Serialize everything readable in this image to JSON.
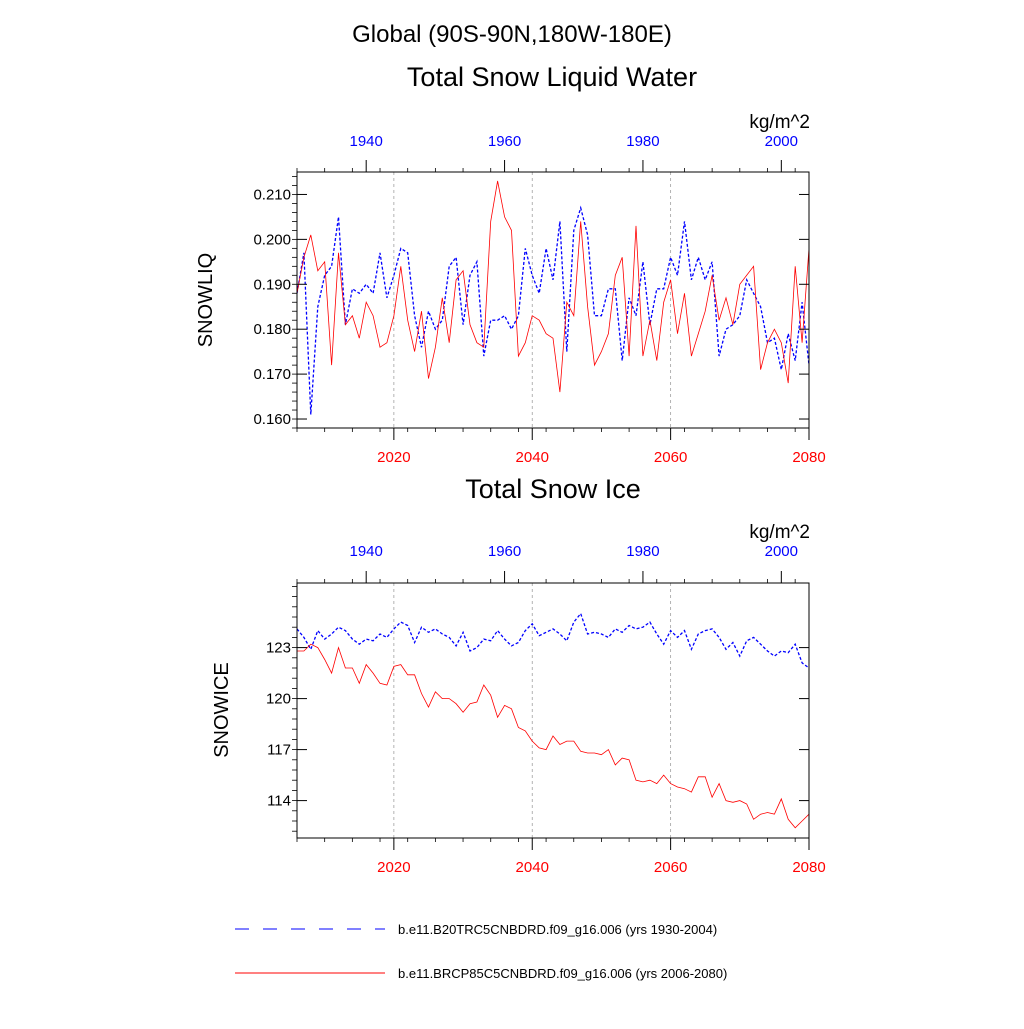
{
  "title": "Global (90S-90N,180W-180E)",
  "colors": {
    "hist": "#0000ff",
    "future": "#ff0000",
    "axis": "#000000",
    "grid": "#a0a0a0"
  },
  "legend": [
    {
      "label": "b.e11.B20TRC5CNBDRD.f09_g16.006 (yrs 1930-2004)",
      "color": "#0000ff",
      "dash": "dashed"
    },
    {
      "label": "b.e11.BRCP85C5CNBDRD.f09_g16.006 (yrs 2006-2080)",
      "color": "#ff0000",
      "dash": "solid"
    }
  ],
  "chart_data": [
    {
      "type": "line",
      "title": "Total Snow Liquid Water",
      "units": "kg/m^2",
      "ylabel": "SNOWLIQ",
      "ylim": [
        0.158,
        0.215
      ],
      "yticks": [
        0.16,
        0.17,
        0.18,
        0.19,
        0.2,
        0.21
      ],
      "ytick_labels": [
        "0.160",
        "0.170",
        "0.180",
        "0.190",
        "0.200",
        "0.210"
      ],
      "x_bottom": {
        "range": [
          2006,
          2080
        ],
        "ticks": [
          2020,
          2040,
          2060,
          2080
        ]
      },
      "x_top": {
        "range": [
          1930,
          2004
        ],
        "ticks": [
          1940,
          1960,
          1980,
          2000
        ]
      },
      "series": [
        {
          "name": "b.e11.B20TRC5CNBDRD.f09_g16.006 (yrs 1930-2004)",
          "axis": "top",
          "x_start": 1930,
          "values": [
            0.188,
            0.197,
            0.161,
            0.185,
            0.192,
            0.194,
            0.205,
            0.181,
            0.189,
            0.188,
            0.19,
            0.188,
            0.197,
            0.187,
            0.192,
            0.198,
            0.197,
            0.183,
            0.176,
            0.184,
            0.18,
            0.182,
            0.194,
            0.196,
            0.181,
            0.192,
            0.195,
            0.174,
            0.182,
            0.182,
            0.183,
            0.18,
            0.183,
            0.198,
            0.192,
            0.188,
            0.198,
            0.191,
            0.204,
            0.175,
            0.202,
            0.207,
            0.201,
            0.183,
            0.183,
            0.189,
            0.189,
            0.173,
            0.187,
            0.183,
            0.195,
            0.181,
            0.189,
            0.189,
            0.196,
            0.192,
            0.204,
            0.191,
            0.196,
            0.191,
            0.195,
            0.174,
            0.18,
            0.181,
            0.183,
            0.191,
            0.188,
            0.185,
            0.177,
            0.178,
            0.171,
            0.179,
            0.173,
            0.186,
            0.172
          ]
        },
        {
          "name": "b.e11.BRCP85C5CNBDRD.f09_g16.006 (yrs 2006-2080)",
          "axis": "bottom",
          "x_start": 2006,
          "values": [
            0.188,
            0.196,
            0.201,
            0.193,
            0.195,
            0.172,
            0.197,
            0.181,
            0.183,
            0.178,
            0.186,
            0.183,
            0.176,
            0.177,
            0.183,
            0.194,
            0.182,
            0.175,
            0.184,
            0.169,
            0.176,
            0.187,
            0.177,
            0.191,
            0.193,
            0.181,
            0.177,
            0.176,
            0.204,
            0.213,
            0.205,
            0.202,
            0.174,
            0.177,
            0.183,
            0.182,
            0.179,
            0.178,
            0.166,
            0.186,
            0.183,
            0.204,
            0.185,
            0.172,
            0.175,
            0.179,
            0.192,
            0.196,
            0.174,
            0.203,
            0.174,
            0.182,
            0.173,
            0.186,
            0.191,
            0.179,
            0.188,
            0.174,
            0.179,
            0.184,
            0.192,
            0.182,
            0.187,
            0.181,
            0.19,
            0.192,
            0.194,
            0.171,
            0.177,
            0.18,
            0.177,
            0.168,
            0.194,
            0.177,
            0.198
          ]
        }
      ]
    },
    {
      "type": "line",
      "title": "Total Snow Ice",
      "units": "kg/m^2",
      "ylabel": "SNOWICE",
      "ylim": [
        111.8,
        126.8
      ],
      "yticks": [
        114,
        117,
        120,
        123
      ],
      "ytick_labels": [
        "114",
        "117",
        "120",
        "123"
      ],
      "x_bottom": {
        "range": [
          2006,
          2080
        ],
        "ticks": [
          2020,
          2040,
          2060,
          2080
        ]
      },
      "x_top": {
        "range": [
          1930,
          2004
        ],
        "ticks": [
          1940,
          1960,
          1980,
          2000
        ]
      },
      "series": [
        {
          "name": "b.e11.B20TRC5CNBDRD.f09_g16.006 (yrs 1930-2004)",
          "axis": "top",
          "x_start": 1930,
          "values": [
            124.1,
            123.6,
            122.9,
            124.0,
            123.5,
            123.8,
            124.2,
            124.0,
            123.5,
            123.2,
            123.5,
            123.4,
            123.8,
            123.6,
            124.1,
            124.5,
            124.3,
            123.3,
            124.2,
            123.9,
            124.1,
            123.8,
            123.6,
            123.1,
            123.9,
            122.8,
            123.0,
            123.5,
            123.4,
            124.0,
            123.5,
            123.1,
            123.3,
            124.0,
            124.4,
            123.7,
            123.9,
            124.1,
            123.8,
            123.4,
            124.5,
            125.0,
            123.8,
            123.9,
            123.8,
            123.6,
            124.1,
            123.9,
            124.3,
            124.1,
            124.2,
            124.5,
            123.8,
            123.2,
            124.0,
            123.6,
            124.0,
            122.9,
            123.8,
            124.0,
            124.1,
            123.6,
            122.9,
            123.3,
            122.5,
            123.4,
            123.6,
            123.2,
            122.8,
            122.5,
            122.8,
            122.7,
            123.2,
            122.1,
            121.8
          ]
        },
        {
          "name": "b.e11.BRCP85C5CNBDRD.f09_g16.006 (yrs 2006-2080)",
          "axis": "bottom",
          "x_start": 2006,
          "values": [
            122.8,
            122.8,
            123.2,
            123.0,
            122.3,
            121.5,
            123.0,
            121.8,
            121.8,
            120.9,
            122.0,
            121.5,
            120.9,
            120.8,
            121.9,
            122.0,
            121.4,
            121.4,
            120.3,
            119.5,
            120.4,
            120.0,
            120.0,
            119.7,
            119.2,
            119.7,
            119.8,
            120.8,
            120.2,
            118.9,
            119.6,
            119.4,
            118.3,
            118.1,
            117.5,
            117.1,
            117.0,
            117.8,
            117.3,
            117.5,
            117.5,
            116.9,
            116.8,
            116.8,
            116.7,
            117.0,
            116.1,
            116.5,
            116.4,
            115.2,
            115.1,
            115.2,
            115.0,
            115.5,
            115.0,
            114.8,
            114.7,
            114.5,
            115.4,
            115.4,
            114.2,
            115.0,
            114.0,
            113.9,
            114.0,
            113.8,
            112.9,
            113.2,
            113.3,
            113.2,
            114.1,
            112.9,
            112.4,
            112.8,
            113.2
          ]
        }
      ]
    }
  ]
}
